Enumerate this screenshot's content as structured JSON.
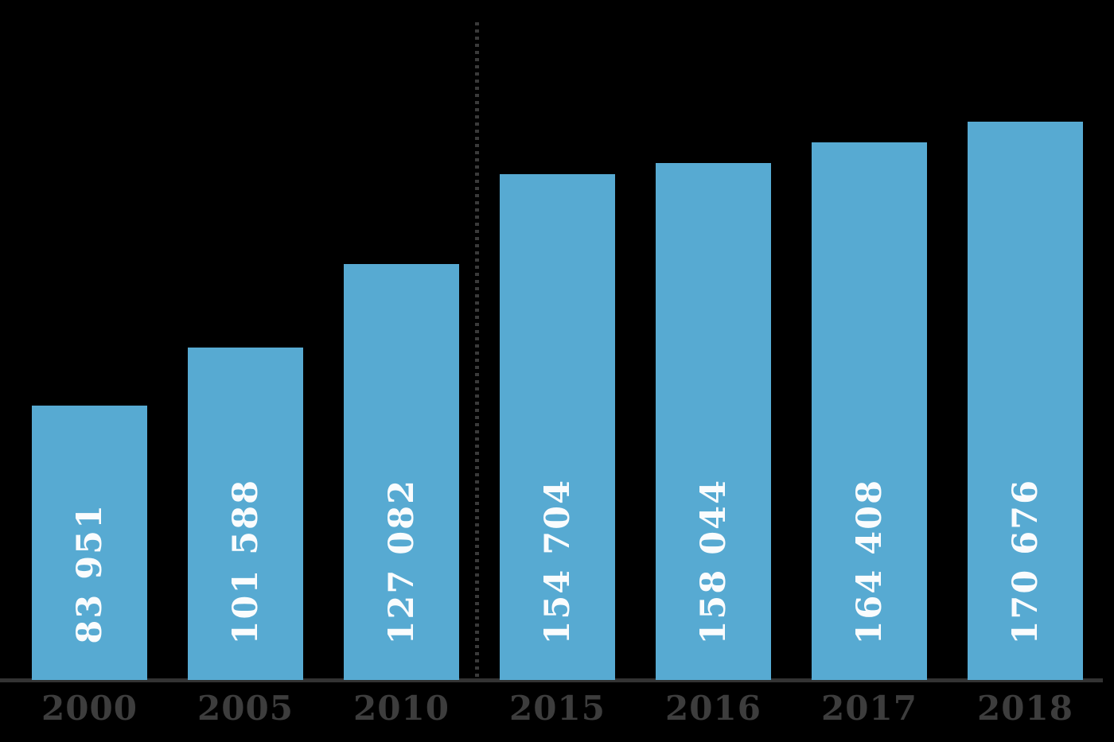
{
  "chart_data": {
    "type": "bar",
    "title": "",
    "xlabel": "",
    "ylabel": "",
    "categories": [
      "2000",
      "2005",
      "2010",
      "2015",
      "2016",
      "2017",
      "2018"
    ],
    "values": [
      83951,
      101588,
      127082,
      154704,
      158044,
      164408,
      170676
    ],
    "value_labels": [
      "83 951",
      "101 588",
      "127 082",
      "154 704",
      "158 044",
      "164 408",
      "170 676"
    ],
    "ylim": [
      0,
      205000
    ],
    "grid": false,
    "legend": false,
    "value_label_rotation": -90,
    "separator_line_between": [
      "2010",
      "2015"
    ],
    "colors": {
      "bar": "#57AAD2",
      "value_label": "#FAFCFD",
      "axis_label": "#3D3D3D",
      "axis_line": "#333333",
      "separator_line": "#3A3A3A",
      "background": "#000000"
    }
  }
}
